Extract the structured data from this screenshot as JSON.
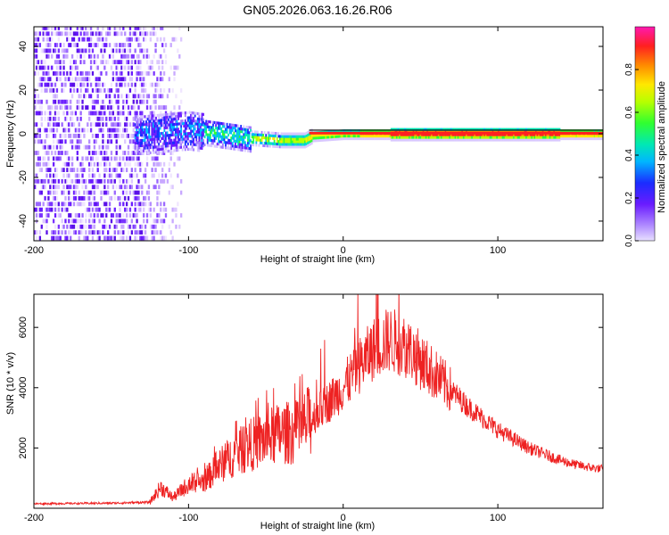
{
  "figure_title": "GN05.2026.063.16.26.R06",
  "chart_data": [
    {
      "type": "heatmap",
      "title": "",
      "xlabel": "Height of straight line (km)",
      "ylabel": "Frequency (Hz)",
      "xlim": [
        -200,
        168
      ],
      "ylim": [
        -49,
        49
      ],
      "xticks": [
        -200,
        -100,
        0,
        100
      ],
      "yticks": [
        -40,
        -20,
        0,
        20,
        40
      ],
      "description_values": {
        "noise_region_km": [
          -200,
          -115
        ],
        "signal_track": [
          {
            "x": -130,
            "freq": 0
          },
          {
            "x": -100,
            "freq": 2
          },
          {
            "x": -80,
            "freq": 0
          },
          {
            "x": -60,
            "freq": -2
          },
          {
            "x": -40,
            "freq": -3
          },
          {
            "x": -25,
            "freq": -3
          },
          {
            "x": -20,
            "freq": -1
          },
          {
            "x": 0,
            "freq": 0
          },
          {
            "x": 10,
            "freq": 0
          },
          {
            "x": 20,
            "freq": 0
          },
          {
            "x": 168,
            "freq": 0
          }
        ]
      },
      "colorbar": {
        "label": "Normalized spectral amplitude",
        "range": [
          0,
          1
        ],
        "ticks": [
          "0.0",
          "0.2",
          "0.4",
          "0.6",
          "0.8"
        ],
        "tick_values": [
          0,
          0.2,
          0.4,
          0.6,
          0.8
        ]
      }
    },
    {
      "type": "line",
      "title": "",
      "xlabel": "Height of straight line (km)",
      "ylabel": "SNR (10 * v/v)",
      "xlim": [
        -200,
        168
      ],
      "ylim": [
        0,
        7100
      ],
      "xticks": [
        -200,
        -100,
        0,
        100
      ],
      "yticks": [
        2000,
        4000,
        6000
      ],
      "series_color": "#ee2222",
      "envelope": [
        {
          "x": -200,
          "y": 150
        },
        {
          "x": -150,
          "y": 170
        },
        {
          "x": -125,
          "y": 200
        },
        {
          "x": -118,
          "y": 700
        },
        {
          "x": -110,
          "y": 350
        },
        {
          "x": -100,
          "y": 800
        },
        {
          "x": -90,
          "y": 900
        },
        {
          "x": -80,
          "y": 1400
        },
        {
          "x": -70,
          "y": 1800
        },
        {
          "x": -60,
          "y": 2100
        },
        {
          "x": -50,
          "y": 2300
        },
        {
          "x": -40,
          "y": 2500
        },
        {
          "x": -30,
          "y": 2500
        },
        {
          "x": -20,
          "y": 3000
        },
        {
          "x": -10,
          "y": 3500
        },
        {
          "x": 0,
          "y": 4000
        },
        {
          "x": 10,
          "y": 4700
        },
        {
          "x": 20,
          "y": 5300
        },
        {
          "x": 30,
          "y": 5600
        },
        {
          "x": 40,
          "y": 5400
        },
        {
          "x": 50,
          "y": 4900
        },
        {
          "x": 60,
          "y": 4400
        },
        {
          "x": 70,
          "y": 3900
        },
        {
          "x": 80,
          "y": 3400
        },
        {
          "x": 90,
          "y": 3000
        },
        {
          "x": 100,
          "y": 2600
        },
        {
          "x": 110,
          "y": 2300
        },
        {
          "x": 120,
          "y": 2000
        },
        {
          "x": 130,
          "y": 1800
        },
        {
          "x": 140,
          "y": 1600
        },
        {
          "x": 150,
          "y": 1450
        },
        {
          "x": 160,
          "y": 1350
        },
        {
          "x": 168,
          "y": 1300
        }
      ]
    }
  ]
}
